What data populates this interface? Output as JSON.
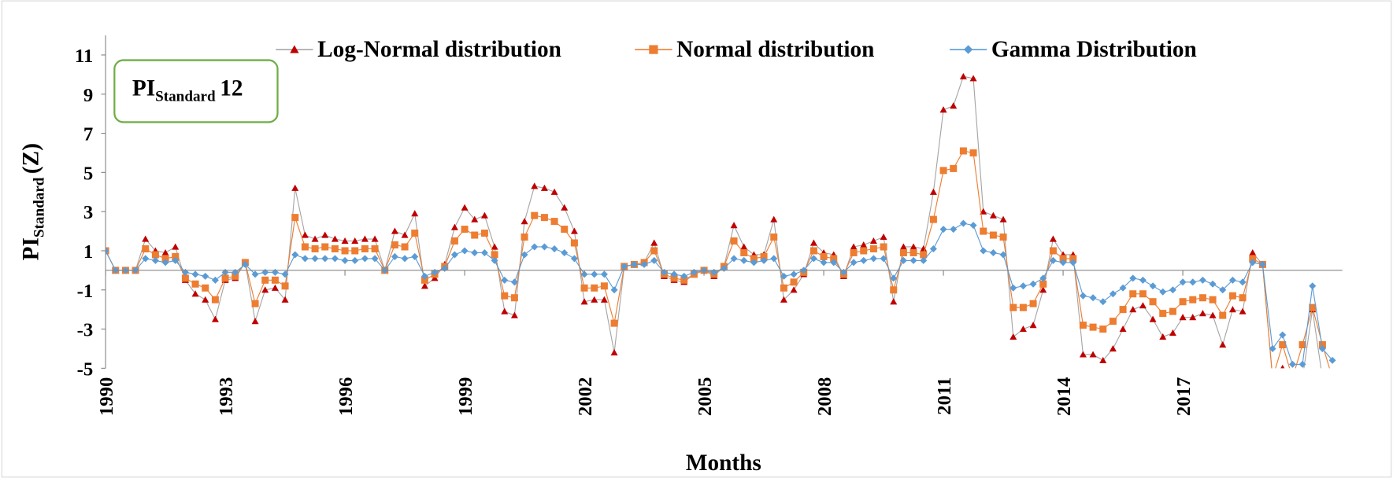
{
  "chart_data": {
    "type": "line",
    "annotation": {
      "text": "PI",
      "sub": "Standard",
      "suffix": "12"
    },
    "y_label": {
      "text": "PI",
      "sub": "Standard",
      "suffix": "(Z)"
    },
    "x_label": "Months",
    "xlim": [
      1990,
      2021
    ],
    "xticks": [
      1990,
      1993,
      1996,
      1999,
      2002,
      2005,
      2008,
      2011,
      2014,
      2017
    ],
    "ylim": [
      -5,
      12
    ],
    "yticks": [
      -5,
      -3,
      -1,
      1,
      3,
      5,
      7,
      9,
      11
    ],
    "x": [
      1990,
      1990.25,
      1990.5,
      1990.75,
      1991,
      1991.25,
      1991.5,
      1991.75,
      1992,
      1992.25,
      1992.5,
      1992.75,
      1993,
      1993.25,
      1993.5,
      1993.75,
      1994,
      1994.25,
      1994.5,
      1994.75,
      1995,
      1995.25,
      1995.5,
      1995.75,
      1996,
      1996.25,
      1996.5,
      1996.75,
      1997,
      1997.25,
      1997.5,
      1997.75,
      1998,
      1998.25,
      1998.5,
      1998.75,
      1999,
      1999.25,
      1999.5,
      1999.75,
      2000,
      2000.25,
      2000.5,
      2000.75,
      2001,
      2001.25,
      2001.5,
      2001.75,
      2002,
      2002.25,
      2002.5,
      2002.75,
      2003,
      2003.25,
      2003.5,
      2003.75,
      2004,
      2004.25,
      2004.5,
      2004.75,
      2005,
      2005.25,
      2005.5,
      2005.75,
      2006,
      2006.25,
      2006.5,
      2006.75,
      2007,
      2007.25,
      2007.5,
      2007.75,
      2008,
      2008.25,
      2008.5,
      2008.75,
      2009,
      2009.25,
      2009.5,
      2009.75,
      2010,
      2010.25,
      2010.5,
      2010.75,
      2011,
      2011.25,
      2011.5,
      2011.75,
      2012,
      2012.25,
      2012.5,
      2012.75,
      2013,
      2013.25,
      2013.5,
      2013.75,
      2014,
      2014.25,
      2014.5,
      2014.75,
      2015,
      2015.25,
      2015.5,
      2015.75,
      2016,
      2016.25,
      2016.5,
      2016.75,
      2017,
      2017.25,
      2017.5,
      2017.75,
      2018,
      2018.25,
      2018.5,
      2018.75,
      2019,
      2019.25,
      2019.5,
      2019.75,
      2020,
      2020.25,
      2020.5,
      2020.75
    ],
    "series": [
      {
        "name": "Log-Normal distribution",
        "color": "#c00000",
        "line_color": "#a5a5a5",
        "marker": "triangle",
        "values": [
          1,
          0,
          0,
          0,
          1.6,
          1.0,
          0.9,
          1.2,
          -0.5,
          -1.2,
          -1.5,
          -2.5,
          -0.5,
          -0.4,
          0.4,
          -2.6,
          -1.0,
          -0.9,
          -1.5,
          4.2,
          1.8,
          1.6,
          1.8,
          1.6,
          1.5,
          1.5,
          1.6,
          1.6,
          0,
          2.0,
          1.8,
          2.9,
          -0.8,
          -0.4,
          0.3,
          2.2,
          3.2,
          2.6,
          2.8,
          1.2,
          -2.1,
          -2.3,
          2.5,
          4.3,
          4.2,
          4.0,
          3.2,
          2.0,
          -1.6,
          -1.5,
          -1.5,
          -4.2,
          0.2,
          0.3,
          0.4,
          1.4,
          -0.3,
          -0.5,
          -0.6,
          -0.2,
          0,
          -0.3,
          0.2,
          2.3,
          1.2,
          0.8,
          0.8,
          2.6,
          -1.5,
          -1.0,
          -0.2,
          1.4,
          0.9,
          0.8,
          -0.3,
          1.2,
          1.3,
          1.5,
          1.7,
          -1.6,
          1.2,
          1.2,
          1.1,
          4.0,
          8.2,
          8.4,
          9.9,
          9.8,
          3.0,
          2.8,
          2.6,
          -3.4,
          -3.0,
          -2.8,
          -1.0,
          1.6,
          0.8,
          0.8,
          -4.3,
          -4.3,
          -4.6,
          -4.0,
          -3.0,
          -2.0,
          -1.8,
          -2.5,
          -3.4,
          -3.2,
          -2.4,
          -2.4,
          -2.2,
          -2.3,
          -3.8,
          -2.0,
          -2.1,
          0.9,
          0.3,
          -5.5,
          -5.0,
          -5.2,
          -5.5,
          -2.0,
          -5.5,
          -5.5
        ]
      },
      {
        "name": "Normal distribution",
        "color": "#ed7d31",
        "line_color": "#ed7d31",
        "marker": "square",
        "values": [
          1,
          0,
          0,
          0,
          1.1,
          0.8,
          0.6,
          0.7,
          -0.4,
          -0.7,
          -0.9,
          -1.5,
          -0.4,
          -0.3,
          0.4,
          -1.7,
          -0.5,
          -0.5,
          -0.8,
          2.7,
          1.2,
          1.1,
          1.2,
          1.1,
          1.0,
          1.0,
          1.1,
          1.1,
          0,
          1.3,
          1.2,
          1.9,
          -0.5,
          -0.2,
          0.2,
          1.5,
          2.1,
          1.8,
          1.9,
          0.8,
          -1.3,
          -1.4,
          1.7,
          2.8,
          2.7,
          2.5,
          2.1,
          1.4,
          -0.9,
          -0.9,
          -0.8,
          -2.7,
          0.2,
          0.3,
          0.4,
          1.0,
          -0.2,
          -0.4,
          -0.5,
          -0.2,
          0,
          -0.2,
          0.2,
          1.5,
          0.9,
          0.6,
          0.7,
          1.7,
          -0.9,
          -0.6,
          -0.1,
          1.0,
          0.7,
          0.6,
          -0.2,
          0.9,
          1.0,
          1.1,
          1.2,
          -1.0,
          0.9,
          0.9,
          0.8,
          2.6,
          5.1,
          5.2,
          6.1,
          6.0,
          2.0,
          1.8,
          1.7,
          -1.9,
          -1.9,
          -1.7,
          -0.7,
          1.0,
          0.6,
          0.6,
          -2.8,
          -2.9,
          -3.0,
          -2.6,
          -2.0,
          -1.2,
          -1.2,
          -1.6,
          -2.2,
          -2.1,
          -1.6,
          -1.5,
          -1.4,
          -1.5,
          -2.3,
          -1.3,
          -1.4,
          0.6,
          0.3,
          -5.5,
          -3.8,
          -5.5,
          -3.8,
          -1.9,
          -3.8,
          -5.5
        ]
      },
      {
        "name": "Gamma Distribution",
        "color": "#5b9bd5",
        "line_color": "#5b9bd5",
        "marker": "diamond",
        "values": [
          1,
          0,
          0,
          0,
          0.6,
          0.5,
          0.4,
          0.5,
          -0.1,
          -0.2,
          -0.3,
          -0.5,
          -0.1,
          -0.1,
          0.3,
          -0.2,
          -0.1,
          -0.1,
          -0.2,
          0.8,
          0.6,
          0.6,
          0.6,
          0.6,
          0.5,
          0.5,
          0.6,
          0.6,
          0,
          0.7,
          0.6,
          0.7,
          -0.3,
          -0.1,
          0.1,
          0.8,
          1.0,
          0.9,
          0.9,
          0.5,
          -0.5,
          -0.6,
          0.8,
          1.2,
          1.2,
          1.1,
          0.9,
          0.6,
          -0.2,
          -0.2,
          -0.2,
          -1.0,
          0.2,
          0.3,
          0.3,
          0.5,
          -0.1,
          -0.2,
          -0.3,
          -0.1,
          0,
          -0.1,
          0.1,
          0.6,
          0.5,
          0.4,
          0.5,
          0.6,
          -0.3,
          -0.2,
          0,
          0.6,
          0.4,
          0.4,
          -0.1,
          0.4,
          0.5,
          0.6,
          0.6,
          -0.4,
          0.5,
          0.5,
          0.5,
          1.1,
          2.1,
          2.1,
          2.4,
          2.3,
          1.0,
          0.9,
          0.8,
          -0.9,
          -0.8,
          -0.7,
          -0.4,
          0.5,
          0.4,
          0.4,
          -1.3,
          -1.4,
          -1.6,
          -1.2,
          -0.9,
          -0.4,
          -0.5,
          -0.8,
          -1.1,
          -1.0,
          -0.6,
          -0.6,
          -0.5,
          -0.7,
          -1.0,
          -0.5,
          -0.6,
          0.4,
          0.3,
          -4.0,
          -3.3,
          -4.8,
          -4.8,
          -0.8,
          -4.0,
          -4.6
        ]
      }
    ]
  }
}
